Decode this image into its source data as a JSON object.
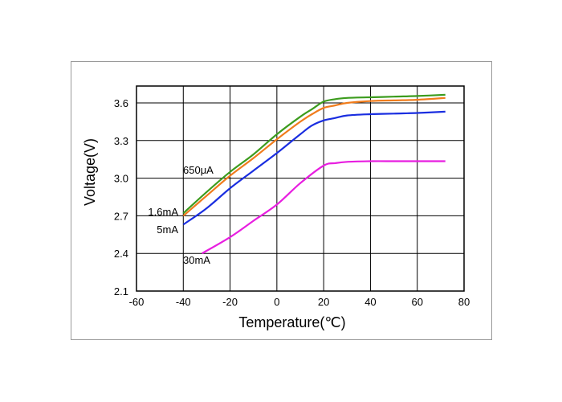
{
  "chart_data": {
    "type": "line",
    "title": "",
    "xlabel": "Temperature(℃)",
    "ylabel": "Voltage(V)",
    "xlim": [
      -60,
      80
    ],
    "ylim": [
      2.1,
      3.6
    ],
    "x_ticks": [
      "-60",
      "-40",
      "-20",
      "0",
      "20",
      "40",
      "60",
      "80"
    ],
    "y_ticks": [
      "2.1",
      "2.4",
      "2.7",
      "3.0",
      "3.3",
      "3.6"
    ],
    "grid": true,
    "series": [
      {
        "name": "650μA",
        "color": "#3c9c1e",
        "x": [
          -40,
          -30,
          -20,
          -10,
          0,
          10,
          15,
          20,
          25,
          30,
          40,
          50,
          60,
          72
        ],
        "y": [
          2.72,
          2.89,
          3.05,
          3.19,
          3.35,
          3.49,
          3.55,
          3.61,
          3.63,
          3.64,
          3.645,
          3.65,
          3.655,
          3.665
        ]
      },
      {
        "name": "1.6mA",
        "color": "#f07c1c",
        "x": [
          -40,
          -30,
          -20,
          -10,
          0,
          10,
          15,
          20,
          25,
          30,
          40,
          50,
          60,
          72
        ],
        "y": [
          2.7,
          2.86,
          3.02,
          3.16,
          3.31,
          3.45,
          3.51,
          3.56,
          3.58,
          3.6,
          3.615,
          3.62,
          3.625,
          3.64
        ]
      },
      {
        "name": "5mA",
        "color": "#1a2ee0",
        "x": [
          -40,
          -30,
          -20,
          -10,
          0,
          10,
          15,
          20,
          25,
          30,
          40,
          50,
          60,
          72
        ],
        "y": [
          2.63,
          2.76,
          2.92,
          3.06,
          3.2,
          3.35,
          3.42,
          3.46,
          3.48,
          3.5,
          3.51,
          3.515,
          3.52,
          3.53
        ]
      },
      {
        "name": "30mA",
        "color": "#e81ee0",
        "x": [
          -32,
          -20,
          -10,
          0,
          10,
          20,
          25,
          30,
          40,
          50,
          60,
          72
        ],
        "y": [
          2.4,
          2.53,
          2.66,
          2.79,
          2.96,
          3.1,
          3.12,
          3.13,
          3.135,
          3.135,
          3.135,
          3.135
        ]
      }
    ]
  }
}
